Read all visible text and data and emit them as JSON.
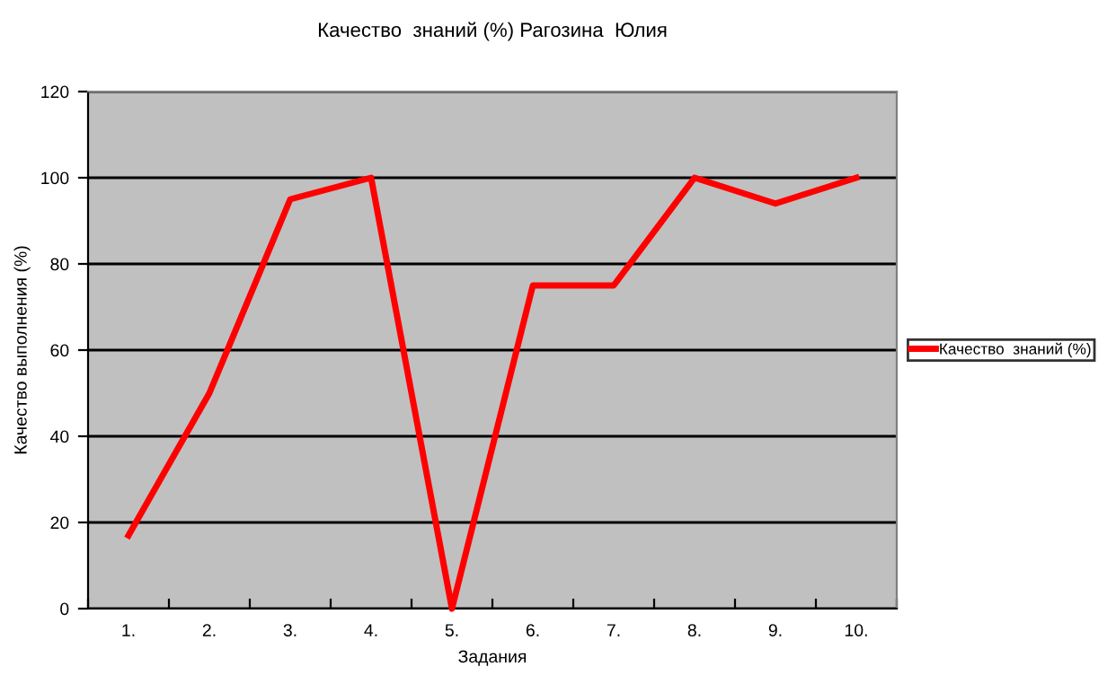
{
  "chart_data": {
    "type": "line",
    "title": "Качество  знаний (%) Рагозина  Юлия",
    "xlabel": "Задания",
    "ylabel": "Качество выполнения (%)",
    "categories": [
      "1.",
      "2.",
      "3.",
      "4.",
      "5.",
      "6.",
      "7.",
      "8.",
      "9.",
      "10."
    ],
    "series": [
      {
        "name": "Качество  знаний (%)",
        "color": "#ff0000",
        "values": [
          17,
          50,
          95,
          100,
          0,
          75,
          75,
          100,
          94,
          100
        ]
      }
    ],
    "ylim": [
      0,
      120
    ],
    "yticks": [
      0,
      20,
      40,
      60,
      80,
      100,
      120
    ],
    "grid": "y",
    "legend": "right",
    "marker": "none",
    "line_style": "solid"
  }
}
